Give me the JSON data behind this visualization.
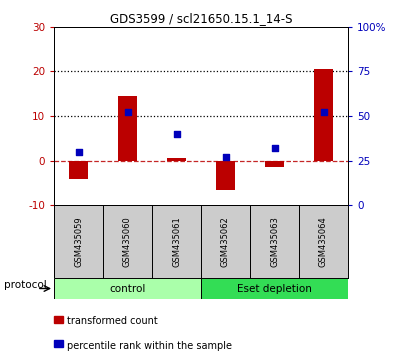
{
  "title": "GDS3599 / scl21650.15.1_14-S",
  "samples": [
    "GSM435059",
    "GSM435060",
    "GSM435061",
    "GSM435062",
    "GSM435063",
    "GSM435064"
  ],
  "bar_values": [
    -4.0,
    14.5,
    0.5,
    -6.5,
    -1.5,
    20.5
  ],
  "dot_values": [
    30.0,
    52.0,
    40.0,
    27.0,
    32.0,
    52.0
  ],
  "bar_color": "#bb0000",
  "dot_color": "#0000bb",
  "ylim_left": [
    -10,
    30
  ],
  "ylim_right": [
    0,
    100
  ],
  "yticks_left": [
    -10,
    0,
    10,
    20,
    30
  ],
  "yticks_right": [
    0,
    25,
    50,
    75,
    100
  ],
  "yticklabels_right": [
    "0",
    "25",
    "50",
    "75",
    "100%"
  ],
  "groups": [
    {
      "label": "control",
      "start": 0,
      "end": 3,
      "color": "#aaffaa"
    },
    {
      "label": "Eset depletion",
      "start": 3,
      "end": 6,
      "color": "#33dd55"
    }
  ],
  "protocol_label": "protocol",
  "legend_items": [
    {
      "color": "#bb0000",
      "label": "transformed count"
    },
    {
      "color": "#0000bb",
      "label": "percentile rank within the sample"
    }
  ],
  "background_color": "#ffffff",
  "plot_bg_color": "#ffffff",
  "sample_box_color": "#cccccc"
}
